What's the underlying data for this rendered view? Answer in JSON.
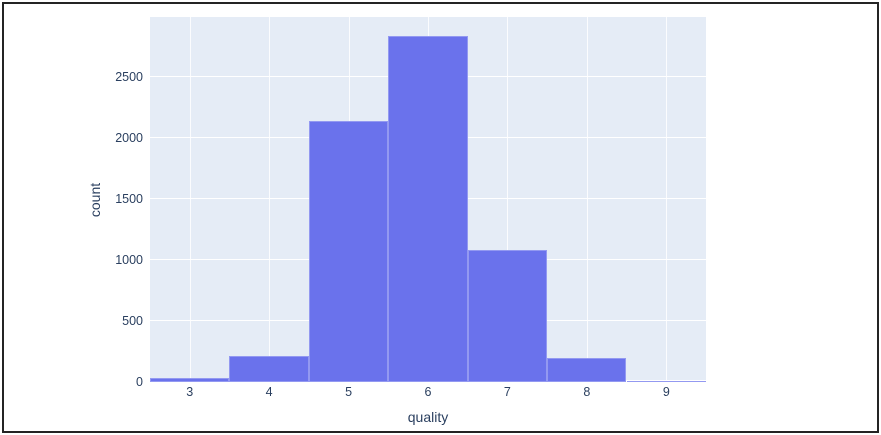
{
  "chart_data": {
    "type": "bar",
    "subtype": "histogram",
    "title": "",
    "xlabel": "quality",
    "ylabel": "count",
    "categories": [
      3,
      4,
      5,
      6,
      7,
      8,
      9
    ],
    "values": [
      30,
      216,
      2138,
      2836,
      1079,
      193,
      5
    ],
    "xticks": [
      3,
      4,
      5,
      6,
      7,
      8,
      9
    ],
    "yticks": [
      0,
      500,
      1000,
      1500,
      2000,
      2500
    ],
    "xlim": [
      2.5,
      9.5
    ],
    "ylim": [
      0,
      2990
    ],
    "grid": true,
    "legend": false,
    "colors": {
      "bar": "#6a72ec",
      "plot_background": "#e5ecf6",
      "paper_background": "#ffffff",
      "gridline": "#ffffff",
      "text": "#2a3f5f",
      "frame_border": "#242424"
    }
  }
}
